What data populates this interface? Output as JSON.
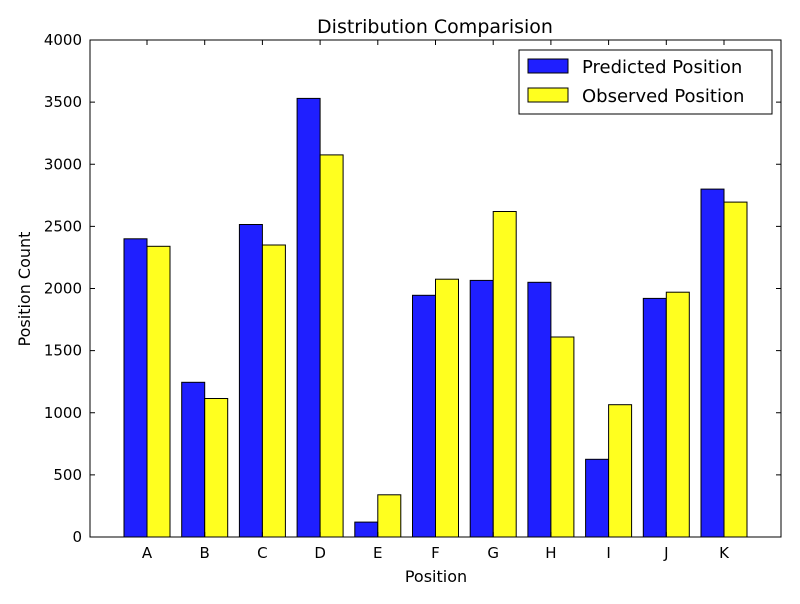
{
  "chart_data": {
    "type": "bar",
    "title": "Distribution Comparision",
    "xlabel": "Position",
    "ylabel": "Position Count",
    "categories": [
      "A",
      "B",
      "C",
      "D",
      "E",
      "F",
      "G",
      "H",
      "I",
      "J",
      "K"
    ],
    "series": [
      {
        "name": "Predicted Position",
        "color": "#1f1fff",
        "values": [
          2400,
          1245,
          2515,
          3530,
          120,
          1945,
          2065,
          2050,
          625,
          1920,
          2800
        ]
      },
      {
        "name": "Observed Position",
        "color": "#ffff1f",
        "values": [
          2340,
          1115,
          2350,
          3075,
          340,
          2075,
          2620,
          1610,
          1065,
          1970,
          2695
        ]
      }
    ],
    "ylim": [
      0,
      4000
    ],
    "yticks": [
      0,
      500,
      1000,
      1500,
      2000,
      2500,
      3000,
      3500,
      4000
    ],
    "legend": "top-right",
    "grid": false
  }
}
